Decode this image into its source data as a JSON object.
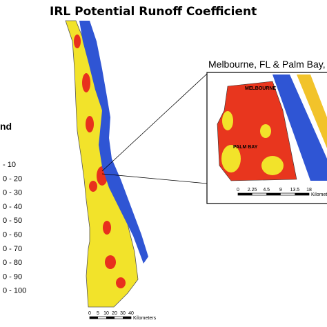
{
  "title": "IRL Potential Runoff Coefficient",
  "legend": {
    "title": "nd",
    "items": [
      "- 10",
      "0 - 20",
      "0 - 30",
      "0 - 40",
      "0 - 50",
      "0 - 60",
      "0 - 70",
      "0 - 80",
      "0 - 90",
      "0 - 100"
    ]
  },
  "scale": {
    "ticks": [
      "0",
      "5",
      "10",
      "20",
      "30",
      "40"
    ],
    "unit": "Kilometers"
  },
  "inset": {
    "title": "Melbourne, FL & Palm Bay,",
    "labels": [
      "MELBOURNE",
      "PALM BAY"
    ],
    "scale": {
      "ticks": [
        "0",
        "2.25",
        "4.5",
        "9",
        "13.5",
        "18"
      ],
      "unit": "Kilometers"
    }
  }
}
